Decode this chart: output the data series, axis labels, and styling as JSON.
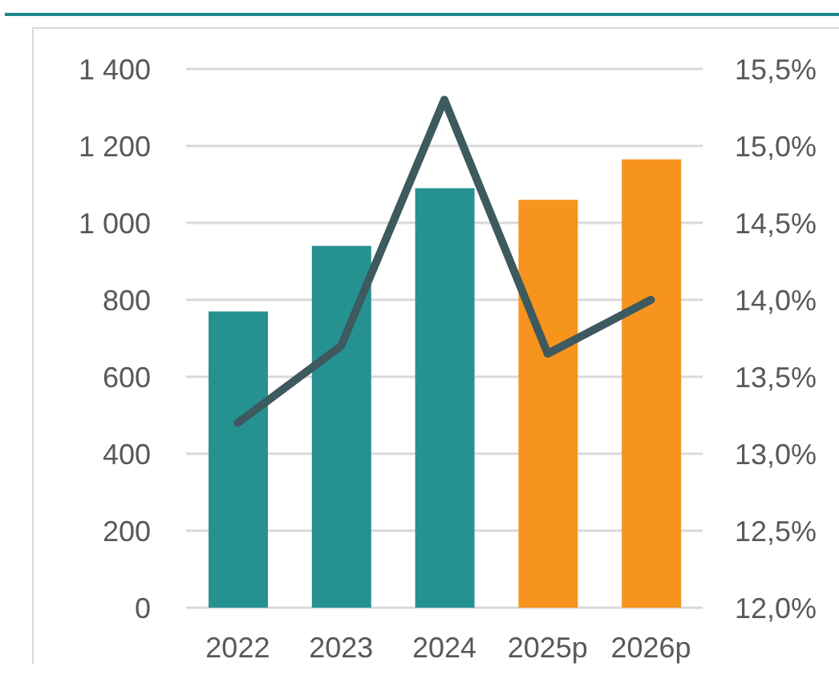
{
  "chart_data": {
    "type": "bar",
    "categories": [
      "2022",
      "2023",
      "2024",
      "2025p",
      "2026p"
    ],
    "series": [
      {
        "colors": [
          "#269191",
          "#269191",
          "#269191",
          "#f7941d",
          "#f7941d"
        ],
        "values": [
          770,
          940,
          1090,
          1060,
          1165
        ]
      },
      {
        "type": "line",
        "axis": "y2",
        "color": "#3d5a5e",
        "values": [
          13.2,
          13.7,
          15.3,
          13.65,
          14.0
        ]
      }
    ],
    "ylim": [
      0,
      1400
    ],
    "yticks": [
      0,
      200,
      400,
      600,
      800,
      {
        "value": 1000,
        "label": "1 000"
      },
      {
        "value": 1200,
        "label": "1 200"
      },
      {
        "value": 1400,
        "label": "1 400"
      }
    ],
    "y2lim": [
      12,
      15.5
    ],
    "y2ticks": [
      {
        "value": 12,
        "label": "12,0%"
      },
      {
        "value": 12.5,
        "label": "12,5%"
      },
      {
        "value": 13,
        "label": "13,0%"
      },
      {
        "value": 13.5,
        "label": "13,5%"
      },
      {
        "value": 14,
        "label": "14,0%"
      },
      {
        "value": 14.5,
        "label": "14,5%"
      },
      {
        "value": 15,
        "label": "15,0%"
      },
      {
        "value": 15.5,
        "label": "15,5%"
      }
    ],
    "grid": "y",
    "marker": "none",
    "legend": false
  }
}
